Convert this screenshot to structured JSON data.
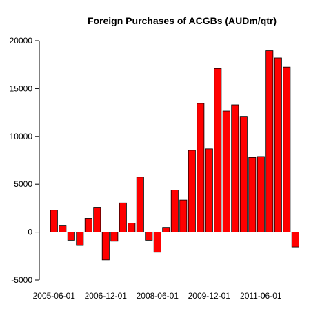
{
  "chart_data": {
    "type": "bar",
    "title": "Foreign Purchases of ACGBs (AUDm/qtr)",
    "xlabel": "",
    "ylabel": "",
    "ylim": [
      -5000,
      20000
    ],
    "y_ticks": [
      -5000,
      0,
      5000,
      10000,
      15000,
      20000
    ],
    "x_tick_labels": [
      {
        "index": 0,
        "label": "2005-06-01"
      },
      {
        "index": 6,
        "label": "2006-12-01"
      },
      {
        "index": 12,
        "label": "2008-06-01"
      },
      {
        "index": 18,
        "label": "2009-12-01"
      },
      {
        "index": 24,
        "label": "2011-06-01"
      }
    ],
    "bar_color": "#ff0000",
    "grid": false,
    "values": [
      2300,
      650,
      -850,
      -1400,
      1450,
      2600,
      -2900,
      -950,
      3050,
      950,
      5750,
      -850,
      -2100,
      500,
      4400,
      3350,
      8550,
      13450,
      8700,
      17100,
      12650,
      13300,
      12100,
      7800,
      7900,
      18950,
      18200,
      17250,
      -1550
    ]
  }
}
